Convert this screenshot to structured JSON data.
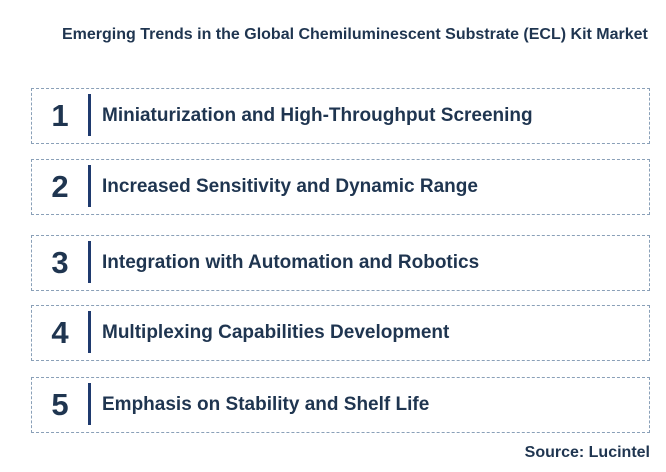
{
  "title": "Emerging Trends in the Global Chemiluminescent Substrate (ECL) Kit Market",
  "items": [
    {
      "number": "1",
      "label": "Miniaturization and High-Throughput Screening"
    },
    {
      "number": "2",
      "label": "Increased Sensitivity and Dynamic Range"
    },
    {
      "number": "3",
      "label": "Integration with Automation and Robotics"
    },
    {
      "number": "4",
      "label": "Multiplexing Capabilities Development"
    },
    {
      "number": "5",
      "label": "Emphasis on Stability and Shelf Life"
    }
  ],
  "source": "Source: Lucintel",
  "colors": {
    "text": "#1f3550",
    "bar": "#1f3a6e",
    "border": "#8aa0b8"
  }
}
